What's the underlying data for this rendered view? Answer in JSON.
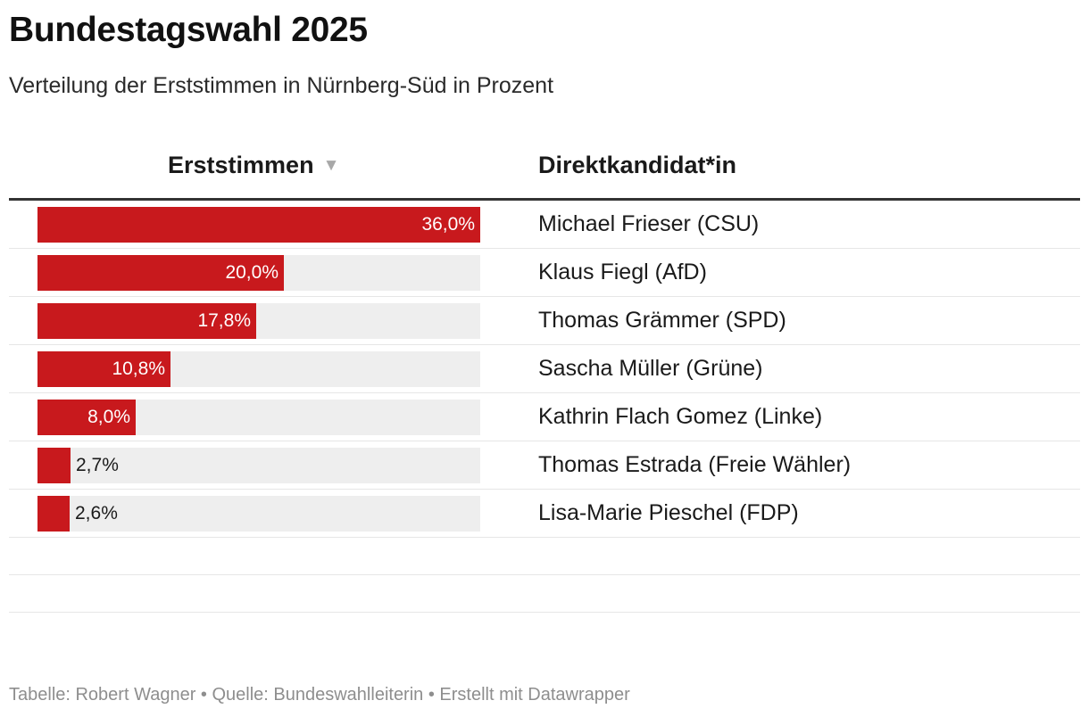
{
  "header": {
    "title": "Bundestagswahl 2025",
    "subtitle": "Verteilung der Erststimmen in Nürnberg-Süd in Prozent"
  },
  "table": {
    "col_votes": "Erststimmen",
    "col_candidate": "Direktkandidat*in",
    "sort_arrow": "▼"
  },
  "footer": {
    "text": "Tabelle: Robert Wagner • Quelle: Bundeswahlleiterin • Erstellt mit Datawrapper"
  },
  "colors": {
    "bar": "#c8191d",
    "bar_background": "#eeeeee"
  },
  "chart_data": {
    "type": "table",
    "title": "Bundestagswahl 2025",
    "subtitle": "Verteilung der Erststimmen in Nürnberg-Süd in Prozent",
    "columns": [
      "Erststimmen",
      "Direktkandidat*in"
    ],
    "max_value": 36.0,
    "rows": [
      {
        "candidate": "Michael Frieser (CSU)",
        "value": 36.0,
        "label": "36,0%"
      },
      {
        "candidate": "Klaus Fiegl (AfD)",
        "value": 20.0,
        "label": "20,0%"
      },
      {
        "candidate": "Thomas Grämmer (SPD)",
        "value": 17.8,
        "label": "17,8%"
      },
      {
        "candidate": "Sascha Müller (Grüne)",
        "value": 10.8,
        "label": "10,8%"
      },
      {
        "candidate": "Kathrin Flach Gomez (Linke)",
        "value": 8.0,
        "label": "8,0%"
      },
      {
        "candidate": "Thomas Estrada (Freie Wähler)",
        "value": 2.7,
        "label": "2,7%"
      },
      {
        "candidate": "Lisa-Marie Pieschel (FDP)",
        "value": 2.6,
        "label": "2,6%"
      }
    ],
    "empty_rows": 2
  }
}
